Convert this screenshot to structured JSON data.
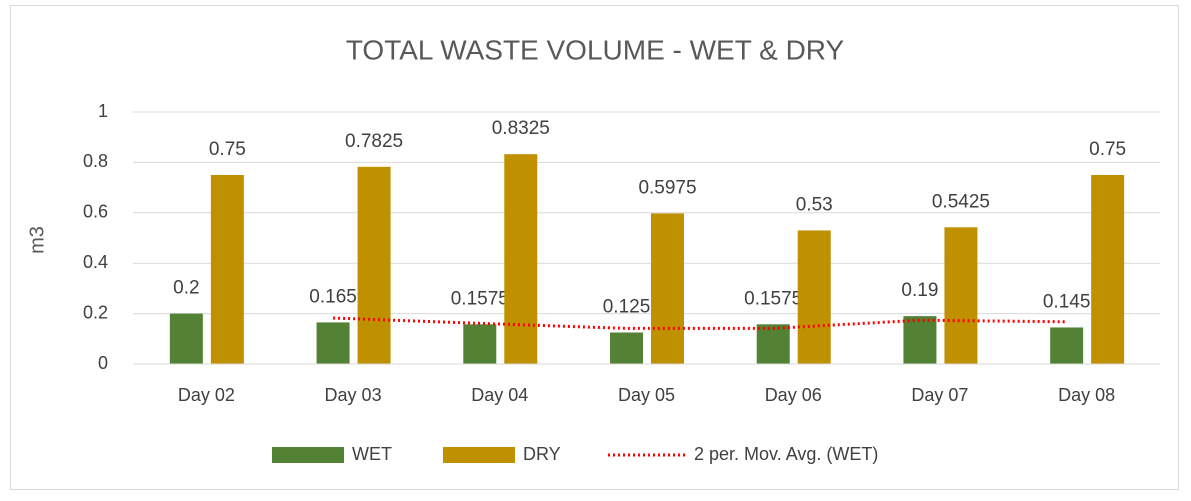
{
  "chart_data": {
    "type": "bar",
    "title": "TOTAL WASTE VOLUME - WET & DRY",
    "y_label": "m3",
    "categories": [
      "Day 02",
      "Day 03",
      "Day 04",
      "Day 05",
      "Day 06",
      "Day 07",
      "Day 08"
    ],
    "series": [
      {
        "name": "WET",
        "color": "#548235",
        "values": [
          0.2,
          0.165,
          0.1575,
          0.125,
          0.1575,
          0.19,
          0.145
        ]
      },
      {
        "name": "DRY",
        "color": "#bf9000",
        "values": [
          0.75,
          0.7825,
          0.8325,
          0.5975,
          0.53,
          0.5425,
          0.75
        ]
      }
    ],
    "trendline": {
      "name": "2 per. Mov. Avg. (WET)",
      "color": "#ff0000",
      "values": [
        null,
        0.1825,
        0.16125,
        0.14125,
        0.14125,
        0.17375,
        0.1675
      ]
    },
    "ylim": [
      0,
      1
    ],
    "yticks": [
      0,
      0.2,
      0.4,
      0.6,
      0.8,
      1
    ],
    "grid": true,
    "legend": "bottom"
  }
}
